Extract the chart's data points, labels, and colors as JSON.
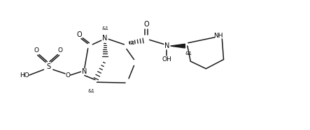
{
  "background_color": "#ffffff",
  "figsize": [
    4.43,
    1.87
  ],
  "dpi": 100,
  "line_color": "#1a1a1a",
  "line_width": 1.1,
  "font_size": 6.5,
  "font_size_small": 5.0,
  "xlim": [
    0,
    10
  ],
  "ylim": [
    0,
    4.2
  ]
}
